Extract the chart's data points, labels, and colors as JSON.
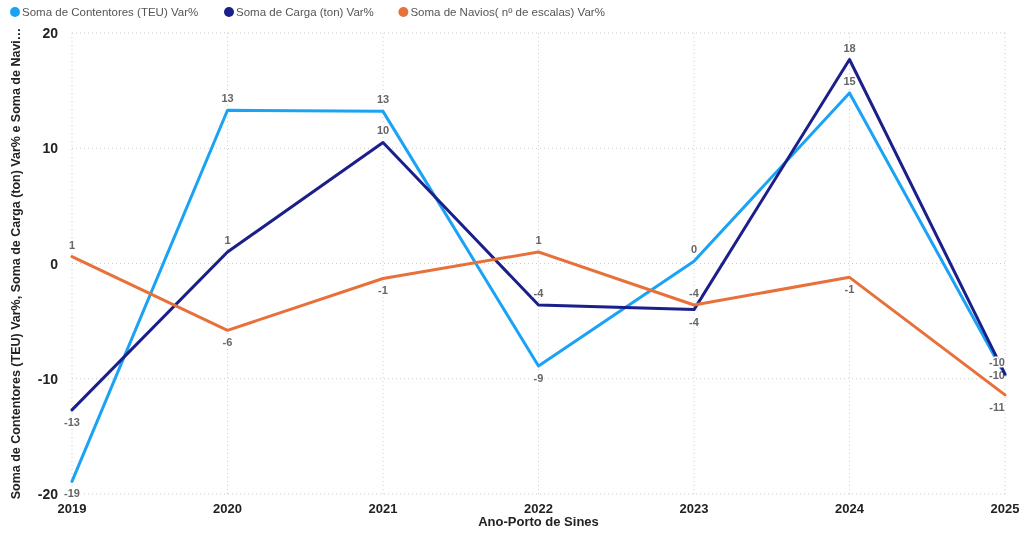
{
  "chart_data": {
    "type": "line",
    "xlabel": "Ano-Porto de Sines",
    "ylabel": "Soma de Contentores (TEU) Var%, Soma de Carga (ton) Var% e Soma de Navi…",
    "categories": [
      "2019",
      "2020",
      "2021",
      "2022",
      "2023",
      "2024",
      "2025"
    ],
    "series": [
      {
        "name": "Soma de Contentores (TEU) Var%",
        "color": "#1aa3f5",
        "values": [
          -18.9,
          13.3,
          13.2,
          -8.9,
          0.2,
          14.8,
          -9.7
        ],
        "value_labels": [
          "-19",
          "13",
          "13",
          "-9",
          "0",
          "15",
          "-10"
        ]
      },
      {
        "name": "Soma de Carga (ton) Var%",
        "color": "#1b1f8a",
        "values": [
          -12.7,
          1.0,
          10.5,
          -3.6,
          -4.0,
          17.7,
          -9.6
        ],
        "value_labels": [
          "-13",
          "1",
          "10",
          "-4",
          "-4",
          "18",
          "-10"
        ]
      },
      {
        "name": "Soma de Navios( nº de escalas) Var%",
        "color": "#e8703a",
        "values": [
          0.6,
          -5.8,
          -1.3,
          1.0,
          -3.6,
          -1.2,
          -11.4
        ],
        "value_labels": [
          "1",
          "-6",
          "-1",
          "1",
          "-4",
          "-1",
          "-11"
        ]
      }
    ],
    "ylim": [
      -20,
      20
    ],
    "yticks": [
      -20,
      -10,
      0,
      10,
      20
    ],
    "grid": true,
    "legend": "top left",
    "marker": "none",
    "line_style": "solid"
  }
}
